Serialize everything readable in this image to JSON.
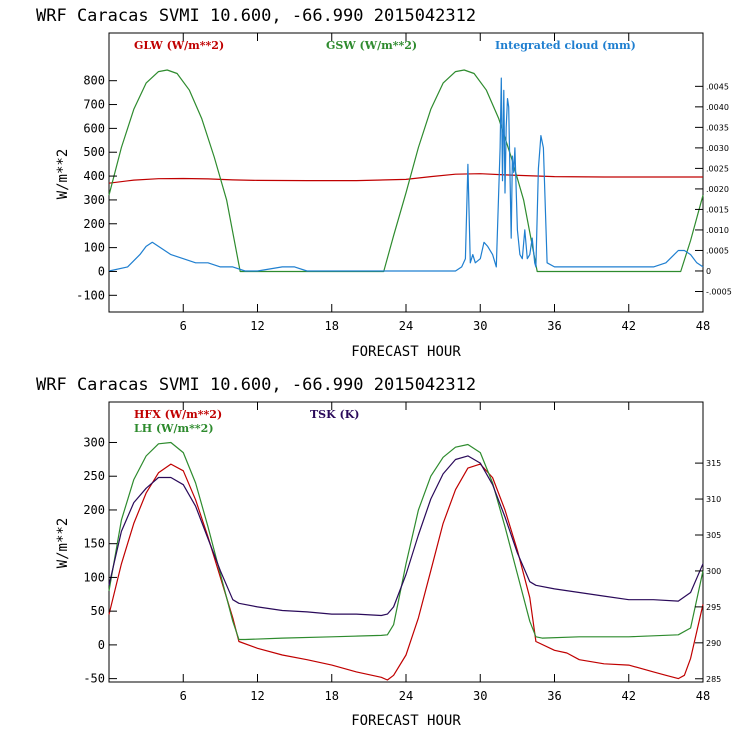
{
  "colors": {
    "red": "#c00000",
    "green": "#2e8b2e",
    "blue": "#1f7fd0",
    "purple": "#2a0a5a"
  },
  "chart_data": [
    {
      "type": "line",
      "title": "WRF  Caracas SVMI  10.600, -66.990  2015042312",
      "xlabel": "FORECAST HOUR",
      "ylabel": "W/m**2",
      "xlim": [
        0,
        48
      ],
      "ylim": [
        -170,
        1000
      ],
      "x_ticks": [
        6,
        12,
        18,
        24,
        30,
        36,
        42,
        48
      ],
      "y_ticks": [
        -100,
        0,
        100,
        200,
        300,
        400,
        500,
        600,
        700,
        800
      ],
      "y2lim": [
        -0.001,
        0.0058
      ],
      "y2_ticks": [
        -0.0005,
        0,
        0.0005,
        0.001,
        0.0015,
        0.002,
        0.0025,
        0.003,
        0.0035,
        0.004,
        0.0045
      ],
      "y2_tick_labels": [
        "-.0005",
        "0",
        ".0005",
        ".0010",
        ".0015",
        ".0020",
        ".0025",
        ".0030",
        ".0035",
        ".0040",
        ".0045"
      ],
      "legend": [
        "GLW (W/m**2)",
        "GSW (W/m**2)",
        "Integrated cloud (mm)"
      ],
      "series": [
        {
          "name": "GLW (W/m**2)",
          "color": "red",
          "axis": "left",
          "x": [
            0,
            2,
            4,
            6,
            8,
            10,
            12,
            16,
            20,
            24,
            26,
            28,
            30,
            32,
            36,
            40,
            44,
            48
          ],
          "y": [
            370,
            383,
            389,
            390,
            388,
            384,
            382,
            381,
            381,
            386,
            398,
            408,
            410,
            405,
            398,
            396,
            396,
            396
          ]
        },
        {
          "name": "GSW (W/m**2)",
          "color": "green",
          "axis": "left",
          "x": [
            0,
            1,
            2,
            3,
            4,
            4.7,
            5.5,
            6.5,
            7.5,
            8.5,
            9.5,
            10.6,
            12,
            16,
            20,
            22.2,
            23,
            24,
            25,
            26,
            27,
            28,
            28.7,
            29.5,
            30.5,
            31.5,
            32.5,
            33.5,
            34.6,
            36,
            40,
            44,
            46.2,
            47,
            48
          ],
          "y": [
            320,
            520,
            680,
            790,
            838,
            845,
            830,
            760,
            640,
            480,
            300,
            0,
            0,
            0,
            0,
            0,
            150,
            330,
            520,
            680,
            790,
            838,
            845,
            830,
            760,
            640,
            480,
            300,
            0,
            0,
            0,
            0,
            0,
            130,
            320
          ]
        },
        {
          "name": "Integrated cloud (mm)",
          "color": "blue",
          "axis": "right",
          "x": [
            0,
            1.5,
            2.5,
            3,
            3.5,
            4,
            5,
            6,
            7,
            8,
            9,
            10,
            11,
            12,
            14,
            15,
            16,
            18,
            22,
            28,
            28.5,
            28.8,
            29,
            29.2,
            29.4,
            29.6,
            30,
            30.3,
            30.6,
            31,
            31.3,
            31.6,
            31.7,
            31.8,
            31.9,
            32,
            32.1,
            32.2,
            32.3,
            32.5,
            32.6,
            32.7,
            32.8,
            33,
            33.2,
            33.4,
            33.6,
            33.8,
            34,
            34.2,
            34.4,
            34.5,
            34.7,
            34.9,
            35.1,
            35.4,
            36,
            38,
            40,
            42,
            44,
            45,
            46,
            46.5,
            47,
            47.5,
            48
          ],
          "y": [
            0,
            0.0001,
            0.0004,
            0.0006,
            0.0007,
            0.0006,
            0.0004,
            0.0003,
            0.0002,
            0.0002,
            0.0001,
            0.0001,
            0,
            0,
            0.0001,
            0.0001,
            0,
            0,
            0,
            0,
            0.0001,
            0.0003,
            0.0026,
            0.0002,
            0.0004,
            0.0002,
            0.0003,
            0.0007,
            0.0006,
            0.0004,
            0.0001,
            0.003,
            0.0047,
            0.0022,
            0.0044,
            0.0019,
            0.0035,
            0.0042,
            0.004,
            0.0008,
            0.0028,
            0.0024,
            0.003,
            0.001,
            0.0004,
            0.0003,
            0.001,
            0.0003,
            0.0004,
            0.0008,
            0.0002,
            0.0001,
            0.0025,
            0.0033,
            0.003,
            0.0002,
            0.0001,
            0.0001,
            0.0001,
            0.0001,
            0.0001,
            0.0002,
            0.0005,
            0.0005,
            0.0004,
            0.0002,
            0.0001
          ]
        }
      ]
    },
    {
      "type": "line",
      "title": "WRF  Caracas SVMI  10.600, -66.990  2015042312",
      "xlabel": "FORECAST HOUR",
      "ylabel": "W/m**2",
      "xlim": [
        0,
        48
      ],
      "ylim": [
        -55,
        360
      ],
      "x_ticks": [
        6,
        12,
        18,
        24,
        30,
        36,
        42,
        48
      ],
      "y_ticks": [
        -50,
        0,
        50,
        100,
        150,
        200,
        250,
        300
      ],
      "y2lim": [
        284.55,
        323.5
      ],
      "y2_ticks": [
        285,
        290,
        295,
        300,
        305,
        310,
        315
      ],
      "y2_tick_labels": [
        "285",
        "290",
        "295",
        "300",
        "305",
        "310",
        "315"
      ],
      "legend": [
        "HFX (W/m**2)",
        "LH  (W/m**2)",
        "TSK (K)"
      ],
      "series": [
        {
          "name": "HFX (W/m**2)",
          "color": "red",
          "axis": "left",
          "x": [
            0,
            1,
            2,
            3,
            4,
            5,
            6,
            7,
            8,
            9,
            10,
            10.5,
            12,
            14,
            16,
            18,
            20,
            22,
            22.5,
            23,
            24,
            25,
            26,
            27,
            28,
            29,
            30,
            31,
            32,
            33,
            34,
            34.5,
            36,
            37,
            38,
            40,
            42,
            44,
            45,
            46,
            46.5,
            47,
            48
          ],
          "y": [
            45,
            120,
            180,
            225,
            255,
            268,
            258,
            215,
            160,
            100,
            40,
            5,
            -5,
            -15,
            -22,
            -30,
            -40,
            -48,
            -52,
            -45,
            -15,
            40,
            110,
            180,
            230,
            262,
            268,
            248,
            200,
            140,
            70,
            5,
            -8,
            -12,
            -22,
            -28,
            -30,
            -40,
            -45,
            -50,
            -45,
            -20,
            60
          ]
        },
        {
          "name": "LH  (W/m**2)",
          "color": "green",
          "axis": "left",
          "x": [
            0,
            1,
            2,
            3,
            4,
            5,
            6,
            7,
            8,
            9,
            10,
            10.5,
            11,
            14,
            18,
            22,
            22.5,
            23,
            24,
            25,
            26,
            27,
            28,
            29,
            30,
            31,
            32,
            33,
            34,
            34.5,
            35,
            38,
            42,
            46,
            47,
            48
          ],
          "y": [
            80,
            185,
            245,
            280,
            298,
            300,
            285,
            240,
            175,
            105,
            35,
            8,
            8,
            10,
            12,
            14,
            15,
            30,
            120,
            200,
            250,
            278,
            293,
            297,
            285,
            240,
            175,
            105,
            35,
            12,
            10,
            12,
            12,
            15,
            25,
            110
          ]
        },
        {
          "name": "TSK (K)",
          "color": "purple",
          "axis": "right",
          "x": [
            0,
            1,
            2,
            3,
            4,
            5,
            6,
            7,
            8,
            9,
            10,
            10.5,
            12,
            14,
            16,
            18,
            20,
            22,
            22.5,
            23,
            24,
            25,
            26,
            27,
            28,
            29,
            30,
            31,
            32,
            33,
            34,
            34.5,
            36,
            38,
            40,
            42,
            44,
            46,
            47,
            48
          ],
          "y": [
            298,
            305.5,
            309.5,
            311.5,
            313,
            313,
            312,
            309,
            304.5,
            300,
            296,
            295.5,
            295,
            294.5,
            294.3,
            294,
            294,
            293.8,
            294,
            295,
            299.5,
            305,
            310,
            313.5,
            315.5,
            316,
            315,
            312,
            307.5,
            302.5,
            298.5,
            298,
            297.5,
            297,
            296.5,
            296,
            296,
            295.8,
            297,
            301
          ]
        }
      ]
    }
  ]
}
